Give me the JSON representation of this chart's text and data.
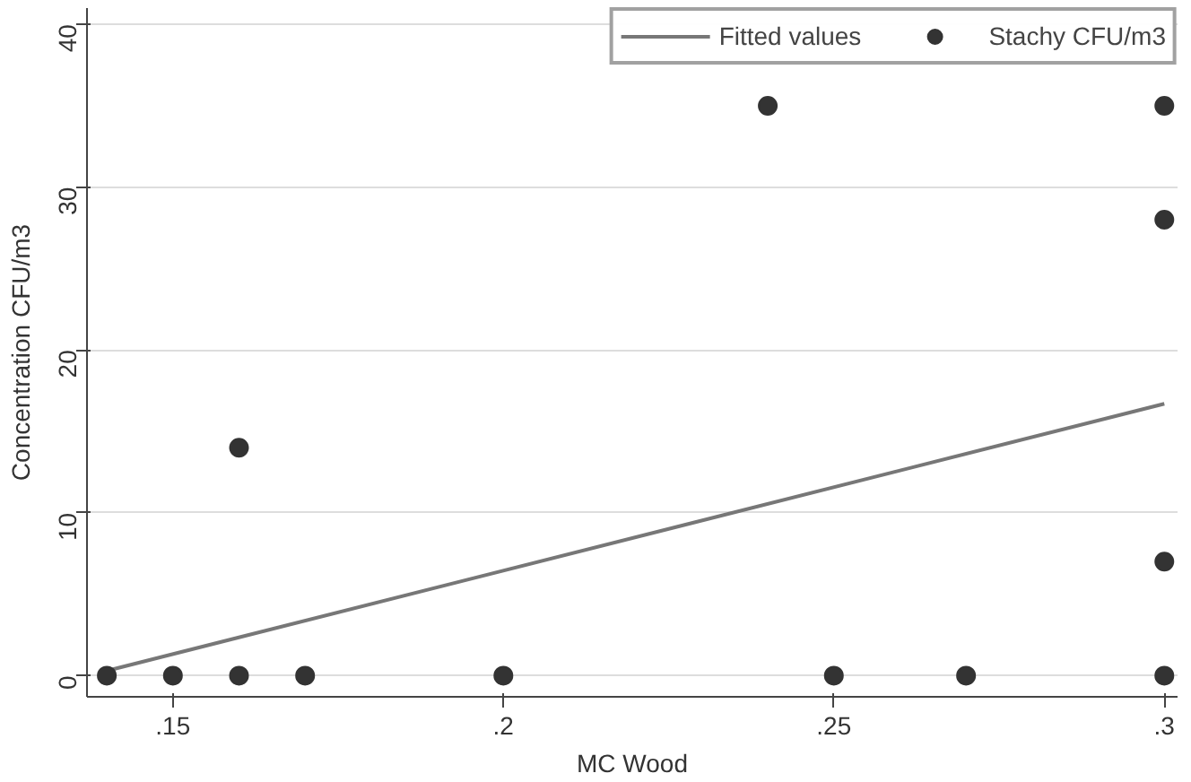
{
  "chart_data": {
    "type": "scatter",
    "xlabel": "MC Wood",
    "ylabel": "Concentration CFU/m3",
    "xlim": [
      0.137,
      0.302
    ],
    "ylim": [
      -1.3,
      41
    ],
    "xticks": [
      {
        "value": 0.15,
        "label": ".15"
      },
      {
        "value": 0.2,
        "label": ".2"
      },
      {
        "value": 0.25,
        "label": ".25"
      },
      {
        "value": 0.3,
        "label": ".3"
      }
    ],
    "yticks": [
      0,
      10,
      20,
      30,
      40
    ],
    "grid": "y",
    "legend": "top right",
    "series": [
      {
        "name": "Fitted values",
        "type": "line",
        "color": "#777777",
        "line_style": "solid",
        "x": [
          0.14,
          0.3
        ],
        "values": [
          0.3,
          16.7
        ]
      },
      {
        "name": "Stachy CFU/m3",
        "marker": "circle",
        "color": "#333333",
        "x": [
          0.14,
          0.15,
          0.16,
          0.16,
          0.17,
          0.2,
          0.24,
          0.25,
          0.27,
          0.3,
          0.3,
          0.3,
          0.3
        ],
        "values": [
          0,
          0,
          0,
          14,
          0,
          0,
          35,
          0,
          0,
          0,
          7,
          28,
          35
        ]
      }
    ]
  }
}
